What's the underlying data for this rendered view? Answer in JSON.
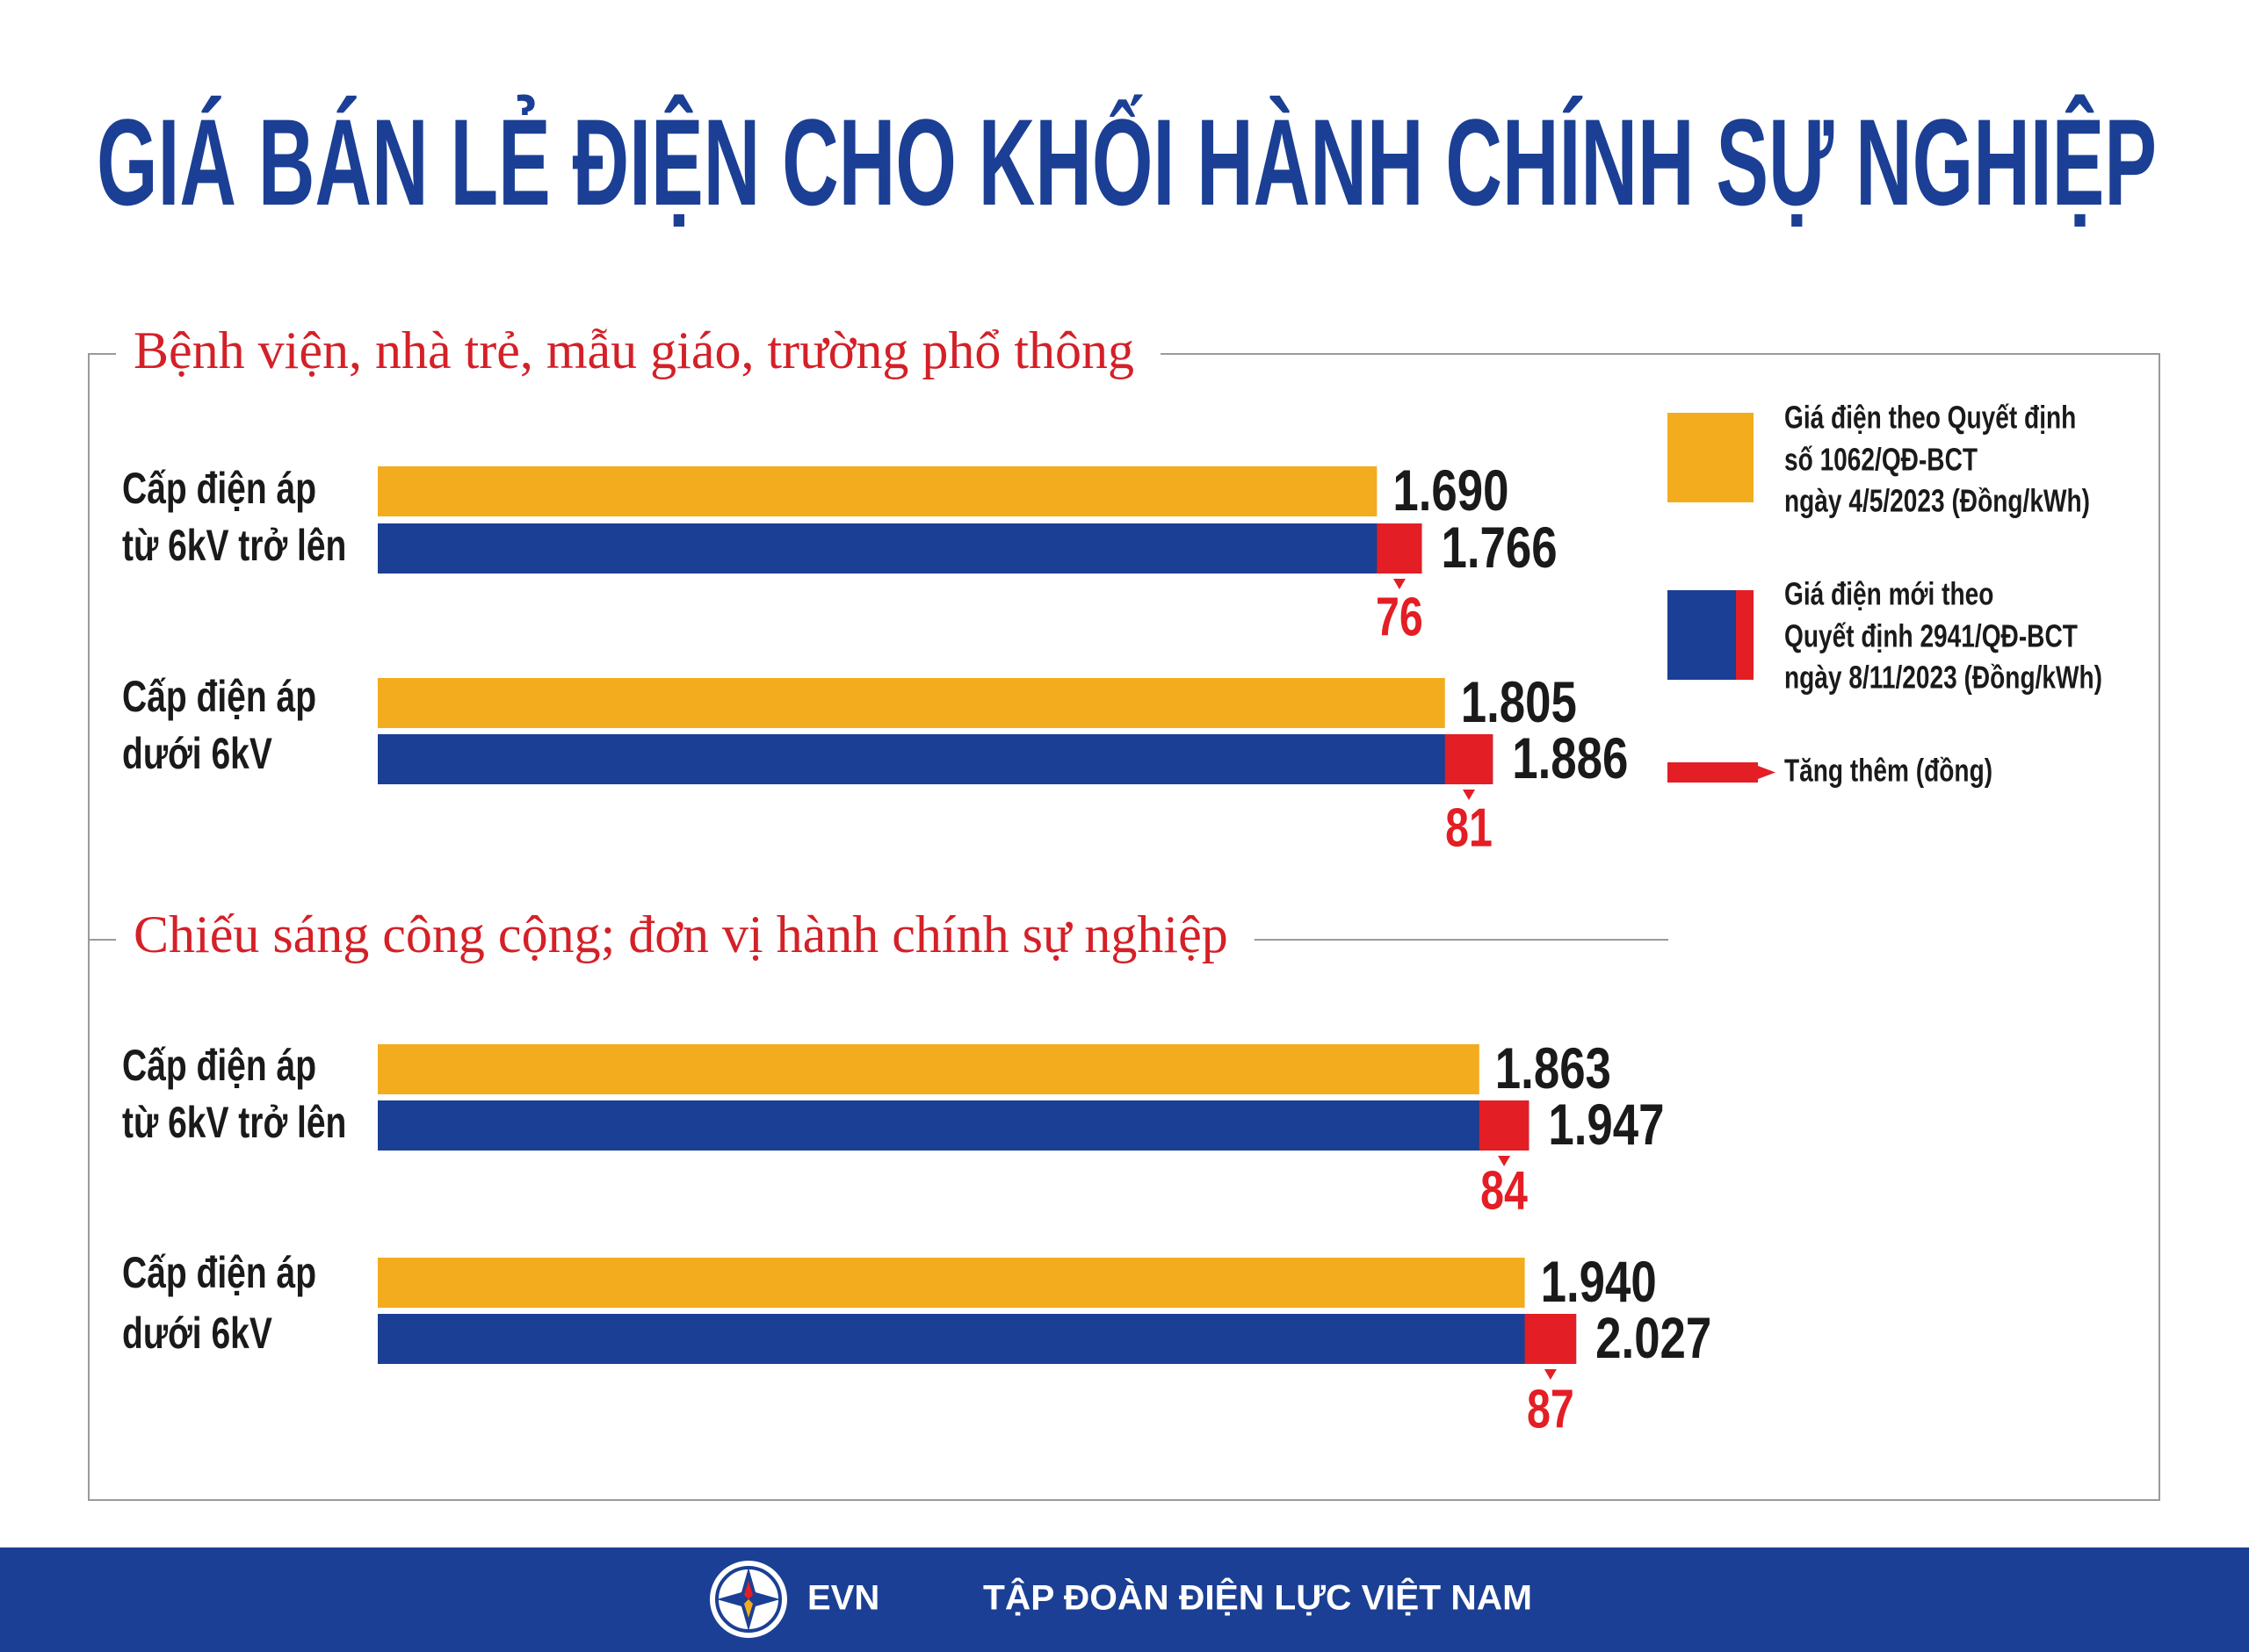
{
  "chart_data": {
    "type": "bar",
    "title": "GIÁ BÁN LẺ ĐIỆN CHO KHỐI HÀNH CHÍNH SỰ NGHIỆP",
    "section_headings": [
      "Bệnh viện, nhà trẻ, mẫu giáo, trường phổ thông",
      "Chiếu sáng công cộng; đơn vị hành chính sự nghiệp"
    ],
    "categories": [
      [
        "Cấp điện áp",
        "từ 6kV trở lên"
      ],
      [
        "Cấp điện áp",
        "dưới 6kV"
      ],
      [
        "Cấp điện áp",
        "từ 6kV trở lên"
      ],
      [
        "Cấp điện áp",
        "dưới 6kV"
      ]
    ],
    "series": [
      {
        "name": [
          "Giá điện theo Quyết định",
          "số 1062/QĐ-BCT",
          "ngày 4/5/2023 (Đồng/kWh)"
        ],
        "color": "#f2ac1d",
        "values": [
          1690,
          1805,
          1863,
          1940
        ],
        "value_labels": [
          "1.690",
          "1.805",
          "1.863",
          "1.940"
        ]
      },
      {
        "name": [
          "Giá điện mới theo",
          "Quyết định 2941/QĐ-BCT",
          "ngày 8/11/2023 (Đồng/kWh)"
        ],
        "color": "#1b3f94",
        "values": [
          1766,
          1886,
          1947,
          2027
        ],
        "value_labels": [
          "1.766",
          "1.886",
          "1.947",
          "2.027"
        ]
      },
      {
        "name": "Tăng thêm (đồng)",
        "color": "#e31e24",
        "values": [
          76,
          81,
          84,
          87
        ]
      }
    ]
  },
  "footer": {
    "logo": "EVN",
    "organization": "TẬP ĐOÀN ĐIỆN LỰC VIỆT NAM"
  }
}
